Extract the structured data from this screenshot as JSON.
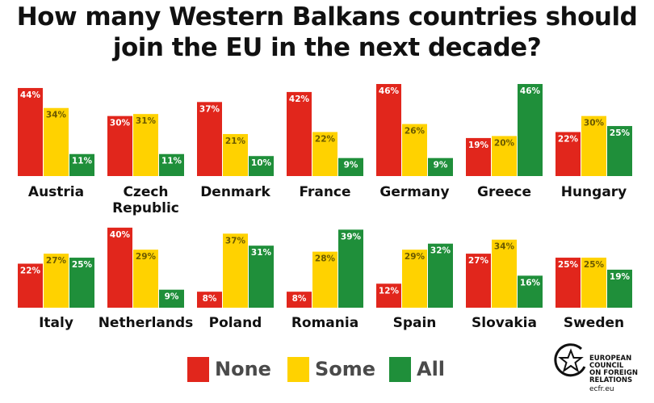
{
  "title_line1": "How many Western Balkans countries should",
  "title_line2": "join the EU in the next decade?",
  "chart_data": {
    "type": "bar",
    "title": "How many Western Balkans countries should join the EU in the next decade?",
    "series": [
      {
        "name": "None",
        "color": "#e1261c"
      },
      {
        "name": "Some",
        "color": "#ffd200"
      },
      {
        "name": "All",
        "color": "#1f8f3a"
      }
    ],
    "ylim": [
      0,
      46
    ],
    "legend": "bottom",
    "grid": false,
    "countries": [
      {
        "name": "Austria",
        "values": [
          44,
          34,
          11
        ],
        "labels": [
          "44%",
          "34%",
          "11%"
        ]
      },
      {
        "name": "Czech Republic",
        "display": [
          "Czech",
          "Republic"
        ],
        "values": [
          30,
          31,
          11
        ],
        "labels": [
          "30%",
          "31%",
          "11%"
        ]
      },
      {
        "name": "Denmark",
        "values": [
          37,
          21,
          10
        ],
        "labels": [
          "37%",
          "21%",
          "10%"
        ]
      },
      {
        "name": "France",
        "values": [
          42,
          22,
          9
        ],
        "labels": [
          "42%",
          "22%",
          "9%"
        ]
      },
      {
        "name": "Germany",
        "values": [
          46,
          26,
          9
        ],
        "labels": [
          "46%",
          "26%",
          "9%"
        ]
      },
      {
        "name": "Greece",
        "values": [
          19,
          20,
          46
        ],
        "labels": [
          "19%",
          "20%",
          "46%"
        ]
      },
      {
        "name": "Hungary",
        "values": [
          22,
          30,
          25
        ],
        "labels": [
          "22%",
          "30%",
          "25%"
        ]
      },
      {
        "name": "Italy",
        "values": [
          22,
          27,
          25
        ],
        "labels": [
          "22%",
          "27%",
          "25%"
        ]
      },
      {
        "name": "Netherlands",
        "values": [
          40,
          29,
          9
        ],
        "labels": [
          "40%",
          "29%",
          "9%"
        ]
      },
      {
        "name": "Poland",
        "values": [
          8,
          37,
          31
        ],
        "labels": [
          "8%",
          "37%",
          "31%"
        ]
      },
      {
        "name": "Romania",
        "values": [
          8,
          28,
          39
        ],
        "labels": [
          "8%",
          "28%",
          "39%"
        ]
      },
      {
        "name": "Spain",
        "values": [
          12,
          29,
          32
        ],
        "labels": [
          "12%",
          "29%",
          "32%"
        ]
      },
      {
        "name": "Slovakia",
        "values": [
          27,
          34,
          16
        ],
        "labels": [
          "27%",
          "34%",
          "16%"
        ]
      },
      {
        "name": "Sweden",
        "values": [
          25,
          25,
          19
        ],
        "labels": [
          "25%",
          "25%",
          "19%"
        ]
      }
    ]
  },
  "legend": {
    "none_label": "None",
    "some_label": "Some",
    "all_label": "All",
    "none_color": "#e1261c",
    "some_color": "#ffd200",
    "all_color": "#1f8f3a"
  },
  "logo": {
    "line1": "EUROPEAN",
    "line2": "COUNCIL",
    "line3": "ON FOREIGN",
    "line4": "RELATIONS",
    "url": "ecfr.eu",
    "icon": "star-circle-icon"
  }
}
